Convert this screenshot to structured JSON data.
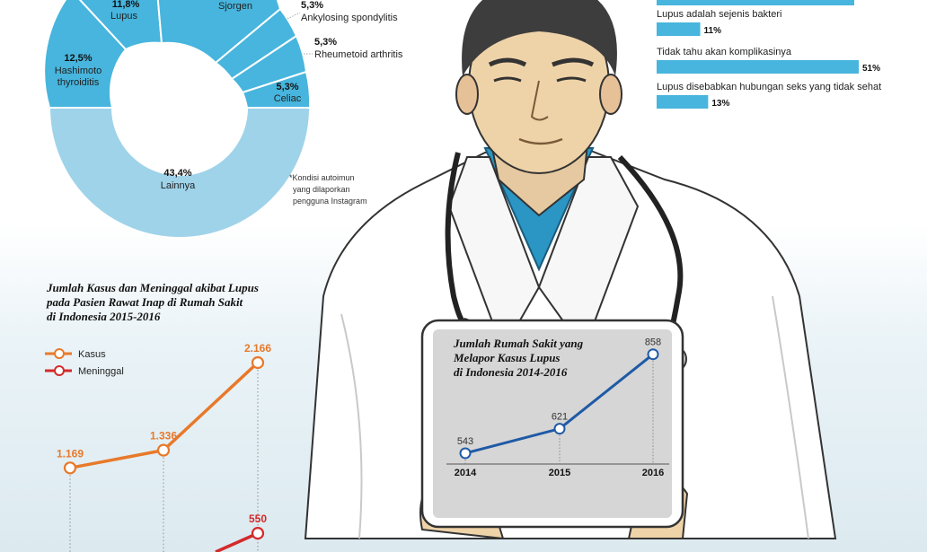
{
  "donut": {
    "slices": [
      {
        "label": "Lupus",
        "value": "11,8%"
      },
      {
        "label": "Sjorgen",
        "value": ""
      },
      {
        "label": "Ankylosing spondylitis",
        "value": "5,3%"
      },
      {
        "label": "Rheumetoid arthritis",
        "value": "5,3%"
      },
      {
        "label": "Celiac",
        "value": "5,3%"
      },
      {
        "label_line1": "Hashimoto",
        "label_line2": "thyroiditis",
        "value": "12,5%"
      },
      {
        "label": "Lainnya",
        "value": "43,4%"
      }
    ],
    "footnote": [
      "*Kondisi autoimun",
      "yang dilaporkan",
      "pengguna Instagram"
    ]
  },
  "survey": {
    "items": [
      {
        "label": "Lupus adalah sejenis bakteri",
        "value": "11%",
        "pct": 11
      },
      {
        "label": "Tidak tahu akan komplikasinya",
        "value": "51%",
        "pct": 51
      },
      {
        "label": "Lupus disebabkan hubungan seks yang tidak sehat",
        "value": "13%",
        "pct": 13
      }
    ]
  },
  "line_cases": {
    "title": [
      "Jumlah Kasus dan Meninggal akibat Lupus",
      "pada Pasien Rawat Inap di Rumah Sakit",
      "di Indonesia 2015-2016"
    ],
    "legend": [
      "Kasus",
      "Meninggal"
    ],
    "labels": [
      "1.169",
      "1.336",
      "2.166",
      "550"
    ]
  },
  "tablet_chart": {
    "title": [
      "Jumlah Rumah Sakit yang",
      "Melapor Kasus Lupus",
      "di Indonesia 2014-2016"
    ],
    "years": [
      "2014",
      "2015",
      "2016"
    ],
    "values": [
      "543",
      "621",
      "858"
    ]
  },
  "colors": {
    "accent_blue": "#47b5dd",
    "donut_light": "#9fd3ea",
    "orange": "#e8792a",
    "red": "#d42a2a",
    "line_blue": "#1f5aa6"
  },
  "chart_data": [
    {
      "type": "pie",
      "categories": [
        "Lupus",
        "Sjorgen",
        "Ankylosing spondylitis",
        "Rheumetoid arthritis",
        "Celiac",
        "Hashimoto thyroiditis",
        "Lainnya"
      ],
      "values": [
        11.8,
        null,
        5.3,
        5.3,
        5.3,
        12.5,
        43.4
      ]
    },
    {
      "type": "bar",
      "categories": [
        "Lupus adalah sejenis bakteri",
        "Tidak tahu akan komplikasinya",
        "Lupus disebabkan hubungan seks yang tidak sehat"
      ],
      "values": [
        11,
        51,
        13
      ]
    },
    {
      "type": "line",
      "title": "Jumlah Kasus dan Meninggal akibat Lupus pada Pasien Rawat Inap di Rumah Sakit di Indonesia 2015-2016",
      "series": [
        {
          "name": "Kasus",
          "values": [
            1169,
            1336,
            2166
          ]
        },
        {
          "name": "Meninggal",
          "values": [
            null,
            null,
            550
          ]
        }
      ]
    },
    {
      "type": "line",
      "title": "Jumlah Rumah Sakit yang Melapor Kasus Lupus di Indonesia 2014-2016",
      "x": [
        "2014",
        "2015",
        "2016"
      ],
      "series": [
        {
          "values": [
            543,
            621,
            858
          ]
        }
      ]
    }
  ]
}
